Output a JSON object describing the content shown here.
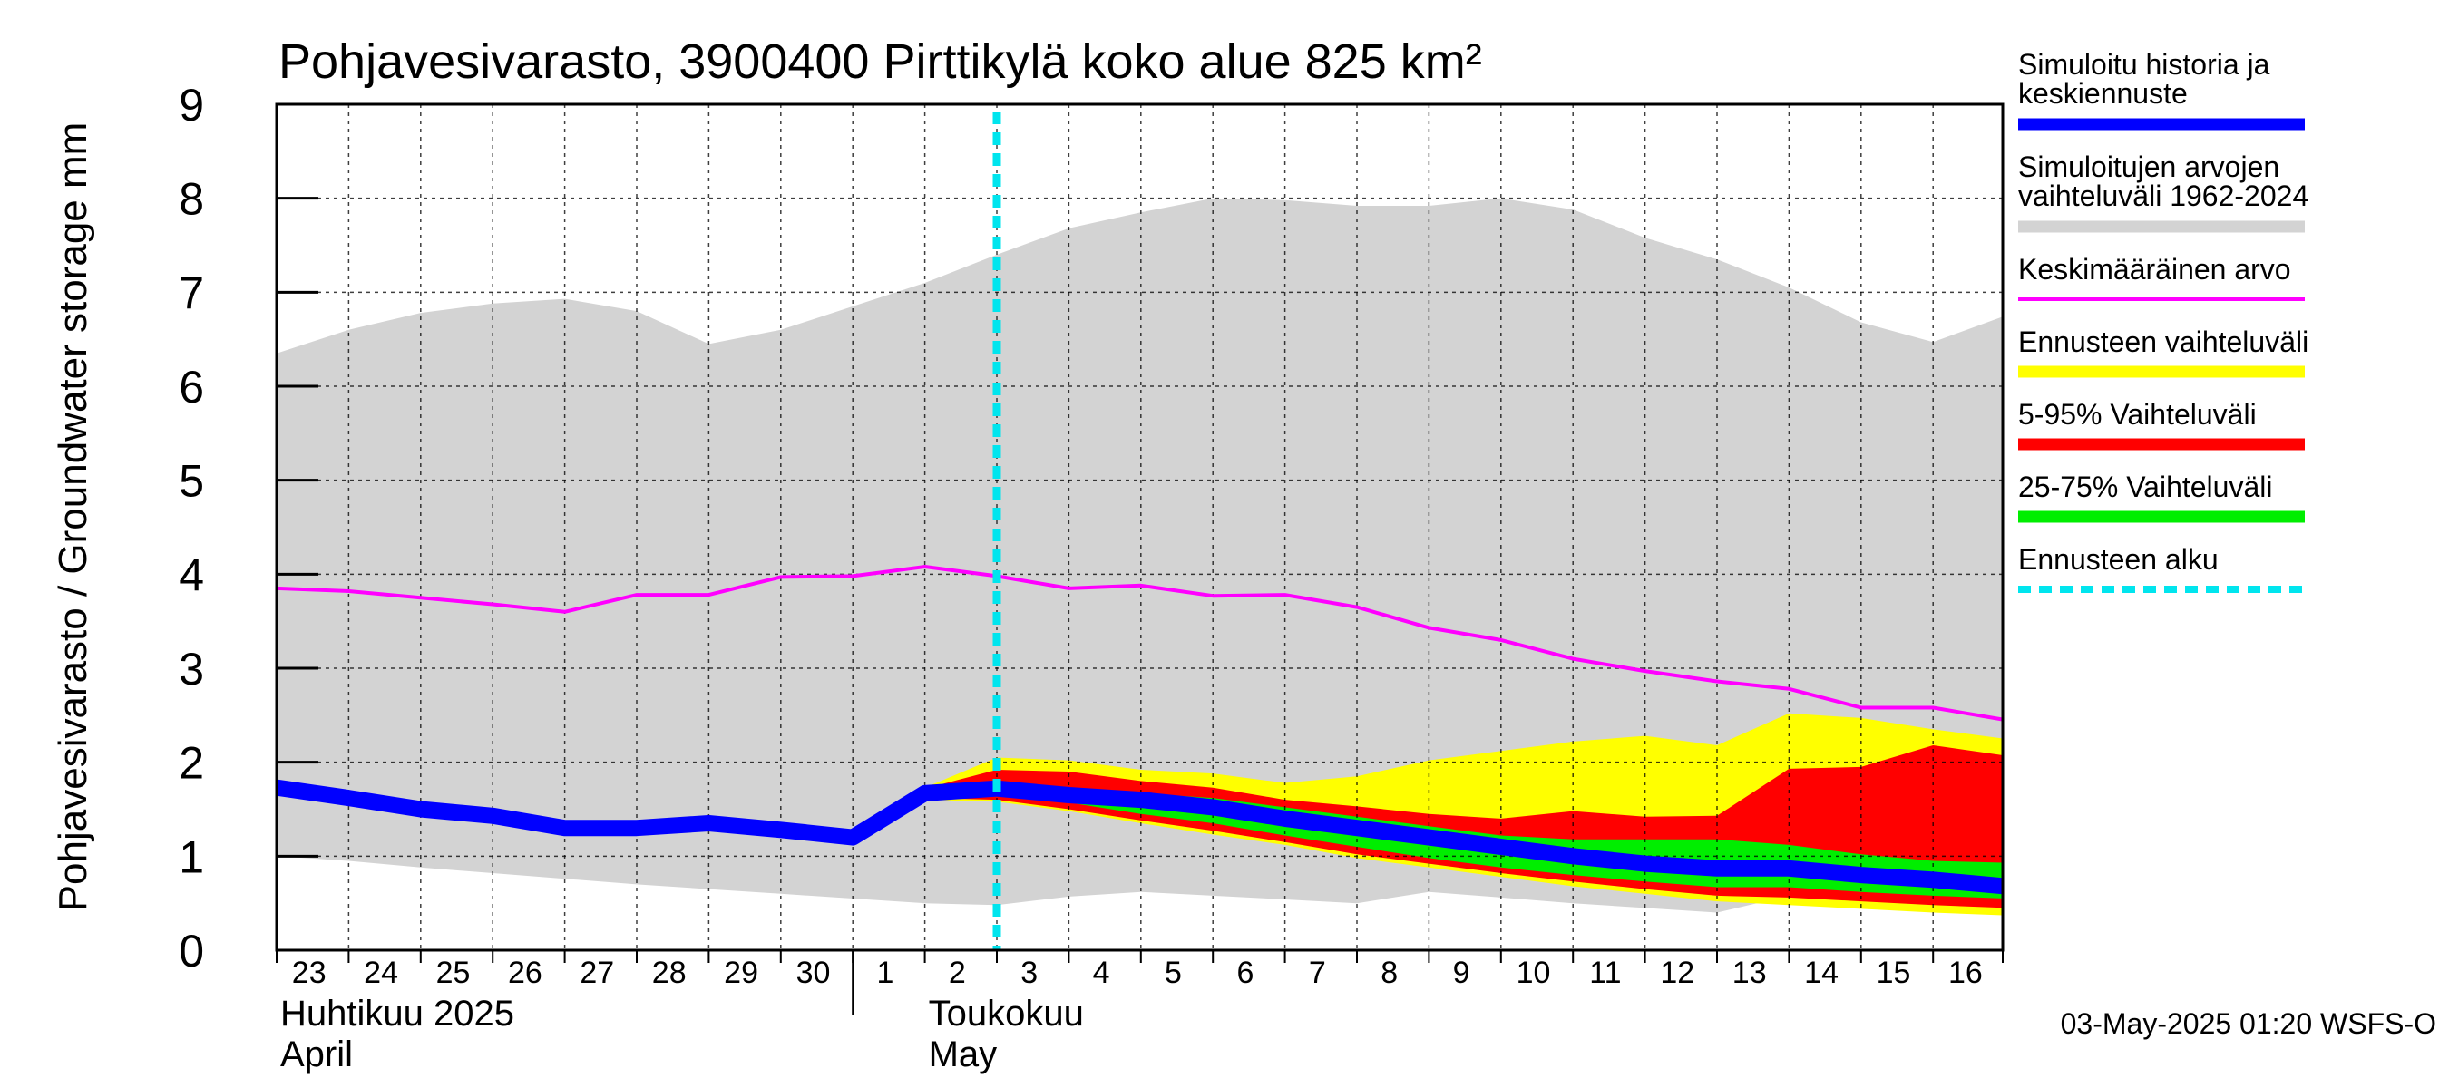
{
  "chart_data": {
    "type": "area",
    "title": "Pohjavesivarasto, 3900400 Pirttikylä koko alue 825 km²",
    "ylabel": "Pohjavesivarasto / Groundwater storage   mm",
    "ylim": [
      0,
      9
    ],
    "yticks": [
      "0",
      "1",
      "2",
      "3",
      "4",
      "5",
      "6",
      "7",
      "8",
      "9"
    ],
    "xlim": [
      0,
      24
    ],
    "forecast_start_x": 10,
    "day_labels": [
      {
        "label": "23",
        "x": 0
      },
      {
        "label": "24",
        "x": 1
      },
      {
        "label": "25",
        "x": 2
      },
      {
        "label": "26",
        "x": 3
      },
      {
        "label": "27",
        "x": 4
      },
      {
        "label": "28",
        "x": 5
      },
      {
        "label": "29",
        "x": 6
      },
      {
        "label": "30",
        "x": 7
      },
      {
        "label": "1",
        "x": 8
      },
      {
        "label": "2",
        "x": 9
      },
      {
        "label": "3",
        "x": 10
      },
      {
        "label": "4",
        "x": 11
      },
      {
        "label": "5",
        "x": 12
      },
      {
        "label": "6",
        "x": 13
      },
      {
        "label": "7",
        "x": 14
      },
      {
        "label": "8",
        "x": 15
      },
      {
        "label": "9",
        "x": 16
      },
      {
        "label": "10",
        "x": 17
      },
      {
        "label": "11",
        "x": 18
      },
      {
        "label": "12",
        "x": 19
      },
      {
        "label": "13",
        "x": 20
      },
      {
        "label": "14",
        "x": 21
      },
      {
        "label": "15",
        "x": 22
      },
      {
        "label": "16",
        "x": 23
      }
    ],
    "month_labels": [
      {
        "line1": "Huhtikuu  2025",
        "line2": "April",
        "x": 0
      },
      {
        "line1": "Toukokuu",
        "line2": "May",
        "x": 9
      }
    ],
    "series": [
      {
        "name": "Simuloitujen arvojen vaihteluväli 1962-2024",
        "kind": "band",
        "color": "#d3d3d3",
        "x": [
          0,
          1,
          2,
          3,
          4,
          5,
          6,
          7,
          8,
          9,
          10,
          11,
          12,
          13,
          14,
          15,
          16,
          17,
          18,
          19,
          20,
          21,
          22,
          23,
          24
        ],
        "upper": [
          6.35,
          6.6,
          6.78,
          6.88,
          6.93,
          6.8,
          6.45,
          6.6,
          6.85,
          7.1,
          7.4,
          7.68,
          7.85,
          8.0,
          7.98,
          7.92,
          7.92,
          8.0,
          7.88,
          7.58,
          7.35,
          7.05,
          6.68,
          6.47,
          6.75
        ],
        "lower": [
          1.0,
          0.95,
          0.88,
          0.82,
          0.76,
          0.7,
          0.65,
          0.6,
          0.55,
          0.5,
          0.48,
          0.57,
          0.62,
          0.58,
          0.54,
          0.5,
          0.62,
          0.56,
          0.5,
          0.45,
          0.4,
          0.58,
          0.52,
          0.48,
          0.45
        ]
      },
      {
        "name": "Ennusteen vaihteluväli",
        "kind": "band",
        "color": "#ffff00",
        "x": [
          9,
          10,
          11,
          12,
          13,
          14,
          15,
          16,
          17,
          18,
          19,
          20,
          21,
          22,
          23,
          24
        ],
        "upper": [
          1.73,
          2.05,
          2.02,
          1.92,
          1.88,
          1.78,
          1.85,
          2.02,
          2.12,
          2.22,
          2.28,
          2.18,
          2.52,
          2.47,
          2.35,
          2.25
        ],
        "lower": [
          1.6,
          1.58,
          1.48,
          1.35,
          1.23,
          1.12,
          0.98,
          0.88,
          0.78,
          0.68,
          0.6,
          0.52,
          0.48,
          0.44,
          0.4,
          0.37
        ]
      },
      {
        "name": "5-95% Vaihteluväli",
        "kind": "band",
        "color": "#ff0000",
        "x": [
          9,
          10,
          11,
          12,
          13,
          14,
          15,
          16,
          17,
          18,
          19,
          20,
          21,
          22,
          23,
          24
        ],
        "upper": [
          1.72,
          1.92,
          1.9,
          1.8,
          1.73,
          1.6,
          1.53,
          1.45,
          1.4,
          1.48,
          1.42,
          1.43,
          1.93,
          1.95,
          2.18,
          2.07
        ],
        "lower": [
          1.62,
          1.6,
          1.5,
          1.38,
          1.27,
          1.15,
          1.02,
          0.92,
          0.82,
          0.73,
          0.65,
          0.58,
          0.56,
          0.52,
          0.48,
          0.45
        ]
      },
      {
        "name": "25-75% Vaihteluväli",
        "kind": "band",
        "color": "#00ee00",
        "x": [
          9,
          10,
          11,
          12,
          13,
          14,
          15,
          16,
          17,
          18,
          19,
          20,
          21,
          22,
          23,
          24
        ],
        "upper": [
          1.7,
          1.8,
          1.73,
          1.67,
          1.62,
          1.52,
          1.42,
          1.32,
          1.22,
          1.18,
          1.18,
          1.18,
          1.12,
          1.02,
          0.95,
          0.93
        ],
        "lower": [
          1.65,
          1.67,
          1.57,
          1.45,
          1.35,
          1.22,
          1.1,
          0.98,
          0.88,
          0.8,
          0.73,
          0.67,
          0.67,
          0.62,
          0.58,
          0.55
        ]
      },
      {
        "name": "Keskimääräinen arvo",
        "kind": "line",
        "color": "#ff00ff",
        "width": 4,
        "x": [
          0,
          1,
          2,
          3,
          4,
          5,
          6,
          7,
          8,
          9,
          10,
          11,
          12,
          13,
          14,
          15,
          16,
          17,
          18,
          19,
          20,
          21,
          22,
          23,
          24
        ],
        "y": [
          3.85,
          3.82,
          3.75,
          3.68,
          3.6,
          3.78,
          3.78,
          3.97,
          3.98,
          4.08,
          3.98,
          3.85,
          3.88,
          3.77,
          3.78,
          3.65,
          3.43,
          3.3,
          3.1,
          2.97,
          2.86,
          2.78,
          2.58,
          2.58,
          2.45
        ]
      },
      {
        "name": "Simuloitu historia ja keskiennuste",
        "kind": "line",
        "color": "#0000ff",
        "width": 18,
        "x": [
          0,
          1,
          2,
          3,
          4,
          5,
          6,
          7,
          8,
          9,
          10,
          11,
          12,
          13,
          14,
          15,
          16,
          17,
          18,
          19,
          20,
          21,
          22,
          23,
          24
        ],
        "y": [
          1.73,
          1.62,
          1.5,
          1.43,
          1.3,
          1.3,
          1.35,
          1.28,
          1.2,
          1.67,
          1.72,
          1.65,
          1.6,
          1.52,
          1.4,
          1.3,
          1.2,
          1.1,
          1.0,
          0.92,
          0.87,
          0.87,
          0.8,
          0.75,
          0.68
        ]
      }
    ],
    "legend": {
      "placement": "right",
      "entries": [
        {
          "label": "Simuloitu historia ja",
          "label2": "keskiennuste",
          "color": "#0000ff",
          "style": "thick"
        },
        {
          "label": "Simuloitujen arvojen",
          "label2": "vaihteluväli 1962-2024",
          "color": "#d3d3d3",
          "style": "thick"
        },
        {
          "label": "Keskimääräinen arvo",
          "label2": "",
          "color": "#ff00ff",
          "style": "thin"
        },
        {
          "label": "Ennusteen vaihteluväli",
          "label2": "",
          "color": "#ffff00",
          "style": "thick"
        },
        {
          "label": "5-95% Vaihteluväli",
          "label2": "",
          "color": "#ff0000",
          "style": "thick"
        },
        {
          "label": "25-75% Vaihteluväli",
          "label2": "",
          "color": "#00ee00",
          "style": "thick"
        },
        {
          "label": "Ennusteen alku",
          "label2": "",
          "color": "#00e5ee",
          "style": "dashed"
        }
      ]
    },
    "forecast_line_color": "#00e5ee",
    "footer": "03-May-2025 01:20 WSFS-O"
  }
}
